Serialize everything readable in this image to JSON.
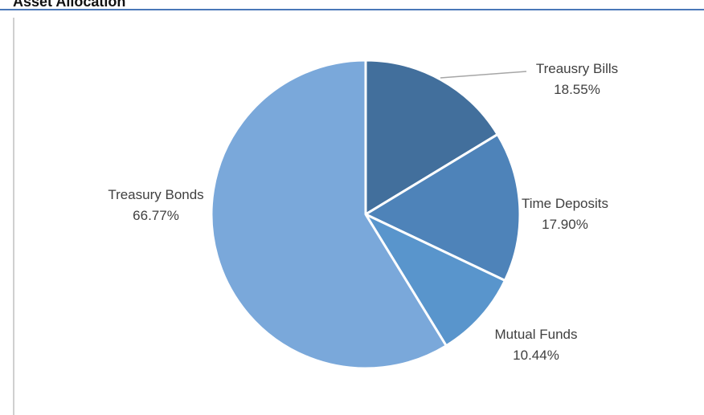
{
  "page": {
    "title": "Asset Allocation"
  },
  "chart_data": {
    "type": "pie",
    "title": "",
    "start_angle_deg": 0,
    "direction": "clockwise",
    "legend": "none",
    "slices": [
      {
        "label": "Treausry Bills",
        "value": 18.55,
        "value_text": "18.55%",
        "color": "#426f9c"
      },
      {
        "label": "Time Deposits",
        "value": 17.9,
        "value_text": "17.90%",
        "color": "#4e83b9"
      },
      {
        "label": "Mutual Funds",
        "value": 10.44,
        "value_text": "10.44%",
        "color": "#5995cc"
      },
      {
        "label": "Treasury Bonds",
        "value": 66.77,
        "value_text": "66.77%",
        "color": "#7aa8da"
      }
    ],
    "colors": {
      "slice_border": "#ffffff",
      "label_text": "#404040",
      "leader_line": "#a6a6a6"
    }
  }
}
